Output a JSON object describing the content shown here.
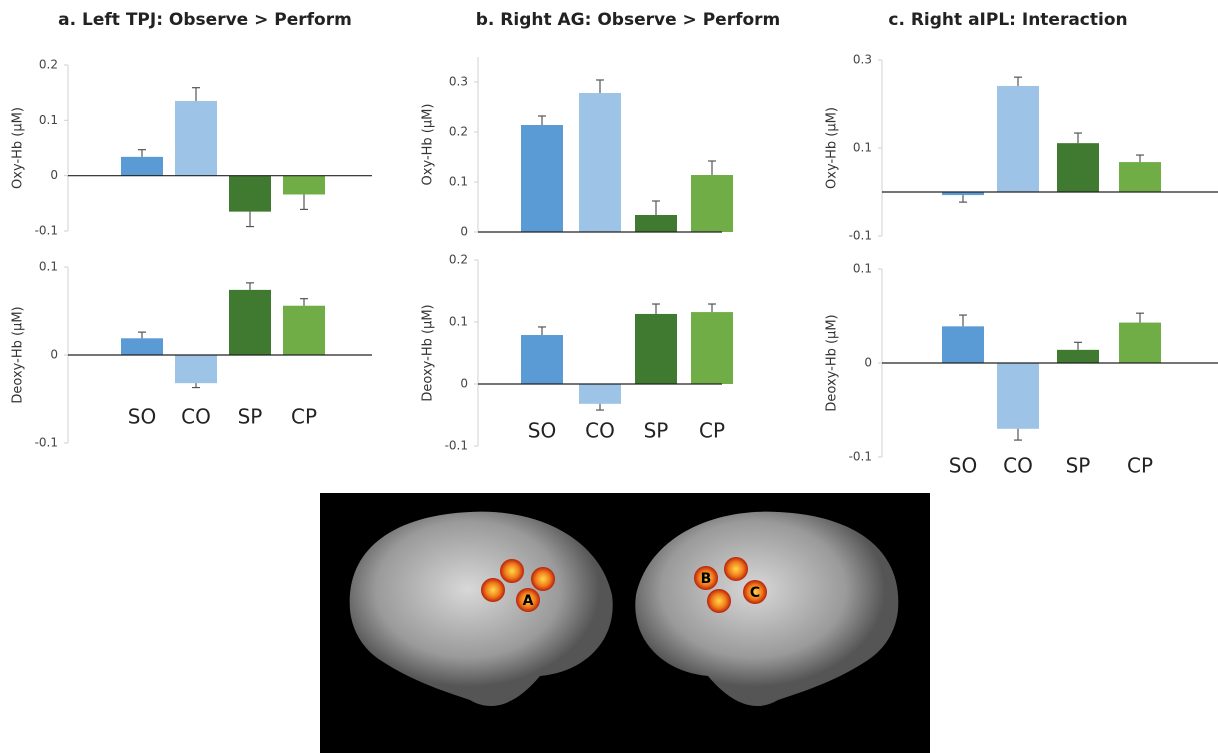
{
  "chart_data": [
    {
      "type": "bar",
      "title": "a. Left TPJ: Observe > Perform",
      "ylabel": "Oxy-Hb (µM)",
      "categories": [
        null,
        null,
        null,
        null
      ],
      "values": [
        0.034,
        0.135,
        -0.065,
        -0.034
      ],
      "errors": [
        0.013,
        0.024,
        0.027,
        0.027
      ],
      "colors": [
        "#5b9bd5",
        "#9dc3e6",
        "#3f7a30",
        "#70ad47"
      ],
      "ylim": [
        -0.1,
        0.2
      ],
      "yticks": [
        -0.1,
        0,
        0.1,
        0.2
      ]
    },
    {
      "type": "bar",
      "ylabel": "Deoxy-Hb (µM)",
      "categories": [
        "SO",
        "CO",
        "SP",
        "CP"
      ],
      "values": [
        0.019,
        -0.032,
        0.074,
        0.056
      ],
      "errors": [
        0.007,
        0.005,
        0.008,
        0.008
      ],
      "colors": [
        "#5b9bd5",
        "#9dc3e6",
        "#3f7a30",
        "#70ad47"
      ],
      "ylim": [
        -0.1,
        0.1
      ],
      "yticks": [
        -0.1,
        0,
        0.1
      ]
    },
    {
      "type": "bar",
      "title": "b. Right AG: Observe > Perform",
      "ylabel": "Oxy-Hb (µM)",
      "categories": [
        null,
        null,
        null,
        null
      ],
      "values": [
        0.214,
        0.278,
        0.034,
        0.114
      ],
      "errors": [
        0.018,
        0.026,
        0.028,
        0.028
      ],
      "colors": [
        "#5b9bd5",
        "#9dc3e6",
        "#3f7a30",
        "#70ad47"
      ],
      "ylim": [
        0,
        0.35
      ],
      "yticks": [
        0,
        0.1,
        0.2,
        0.3
      ]
    },
    {
      "type": "bar",
      "ylabel": "Deoxy-Hb (µM)",
      "categories": [
        "SO",
        "CO",
        "SP",
        "CP"
      ],
      "values": [
        0.079,
        -0.032,
        0.113,
        0.116
      ],
      "errors": [
        0.013,
        0.01,
        0.016,
        0.013
      ],
      "colors": [
        "#5b9bd5",
        "#9dc3e6",
        "#3f7a30",
        "#70ad47"
      ],
      "ylim": [
        -0.1,
        0.2
      ],
      "yticks": [
        -0.1,
        0,
        0.1,
        0.2
      ]
    },
    {
      "type": "bar",
      "title": "c. Right aIPL: Interaction",
      "ylabel": "Oxy-Hb (µM)",
      "categories": [
        null,
        null,
        null,
        null
      ],
      "values": [
        -0.007,
        0.241,
        0.111,
        0.068
      ],
      "errors": [
        0.016,
        0.02,
        0.023,
        0.016
      ],
      "colors": [
        "#5b9bd5",
        "#9dc3e6",
        "#3f7a30",
        "#70ad47"
      ],
      "ylim": [
        -0.1,
        0.3
      ],
      "yticks": [
        -0.1,
        0.1,
        0.3
      ]
    },
    {
      "type": "bar",
      "ylabel": "Deoxy-Hb (µM)",
      "categories": [
        "SO",
        "CO",
        "SP",
        "CP"
      ],
      "values": [
        0.039,
        -0.07,
        0.014,
        0.043
      ],
      "errors": [
        0.012,
        0.012,
        0.008,
        0.01
      ],
      "colors": [
        "#5b9bd5",
        "#9dc3e6",
        "#3f7a30",
        "#70ad47"
      ],
      "ylim": [
        -0.1,
        0.1
      ],
      "yticks": [
        -0.1,
        0,
        0.1
      ]
    }
  ],
  "brain": {
    "labels": [
      "A",
      "B",
      "C"
    ]
  }
}
